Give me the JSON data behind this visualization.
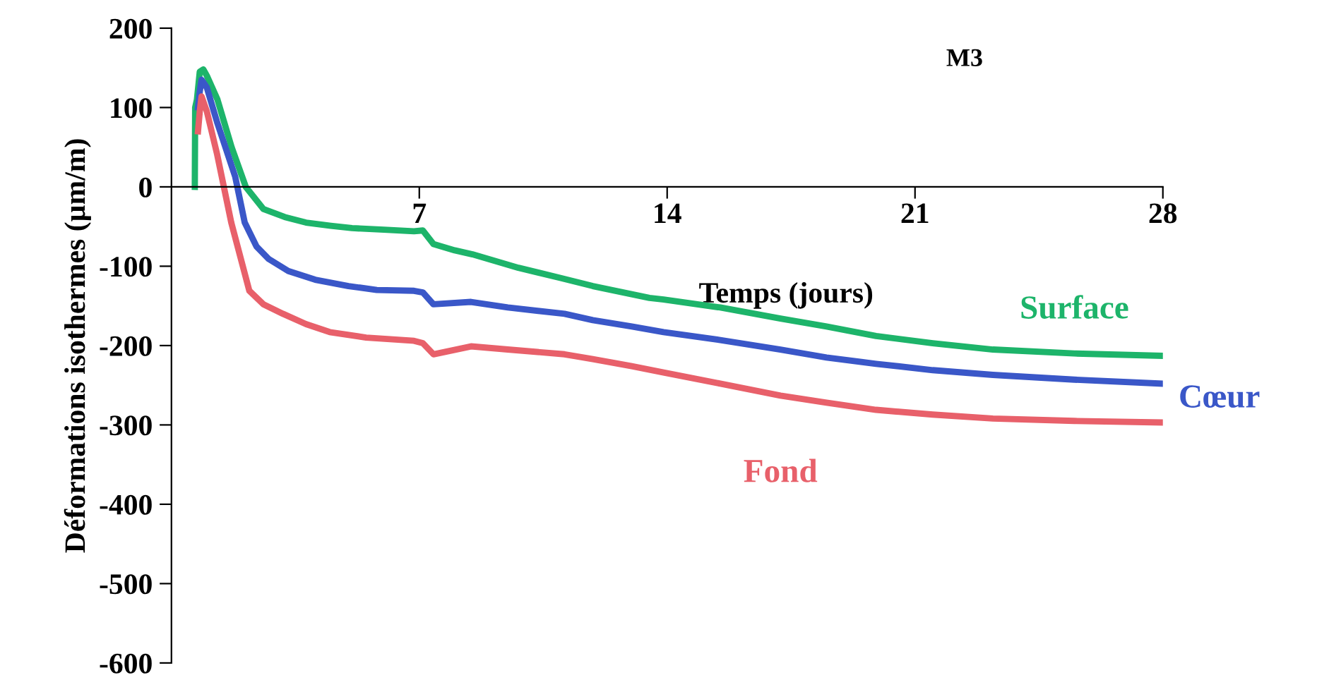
{
  "chart_data": {
    "type": "line",
    "title": "M3",
    "xlabel": "Temps (jours)",
    "ylabel": "Déformations isothermes (µm/m)",
    "xlim": [
      0,
      28
    ],
    "ylim": [
      -600,
      200
    ],
    "xticks": [
      7,
      14,
      21,
      28
    ],
    "yticks": [
      -600,
      -500,
      -400,
      -300,
      -200,
      -100,
      0,
      100,
      200
    ],
    "grid": false,
    "legend": false,
    "marker": "none",
    "line_style": "solid",
    "series": [
      {
        "name": "Surface",
        "color": "#1db46a",
        "x": [
          0.66,
          0.67,
          0.72,
          0.8,
          0.9,
          1.0,
          1.3,
          1.7,
          2.1,
          2.6,
          3.2,
          3.8,
          4.5,
          5.1,
          6.0,
          6.85,
          7.1,
          7.4,
          8.0,
          8.5,
          9.8,
          11.0,
          11.9,
          13.5,
          13.9,
          15.5,
          17.2,
          18.5,
          19.9,
          21.5,
          23.2,
          25.5,
          28.0
        ],
        "values": [
          0,
          100,
          110,
          145,
          148,
          140,
          110,
          50,
          0,
          -28,
          -38,
          -45,
          -49,
          -52,
          -54,
          -56,
          -55,
          -72,
          -80,
          -85,
          -102,
          -115,
          -125,
          -140,
          -142,
          -152,
          -166,
          -176,
          -188,
          -197,
          -205,
          -210,
          -213
        ]
      },
      {
        "name": "Cœur",
        "color": "#3a57c8",
        "x": [
          0.75,
          0.8,
          0.85,
          1.0,
          1.3,
          1.8,
          2.07,
          2.4,
          2.75,
          3.3,
          4.06,
          5.0,
          5.8,
          6.85,
          7.1,
          7.4,
          8.46,
          9.5,
          11.1,
          11.9,
          13.0,
          13.9,
          15.5,
          17.2,
          18.5,
          19.9,
          21.5,
          23.2,
          25.5,
          28.0
        ],
        "values": [
          100,
          120,
          135,
          125,
          80,
          13,
          -45,
          -75,
          -91,
          -106,
          -117,
          -125,
          -130,
          -131,
          -133,
          -148,
          -145,
          -152,
          -160,
          -168,
          -176,
          -183,
          -193,
          -205,
          -215,
          -223,
          -231,
          -237,
          -243,
          -248
        ]
      },
      {
        "name": "Fond",
        "color": "#e8606a",
        "x": [
          0.75,
          0.8,
          0.85,
          1.0,
          1.29,
          1.69,
          2.2,
          2.6,
          3.15,
          3.8,
          4.47,
          5.5,
          6.85,
          7.1,
          7.4,
          8.46,
          9.5,
          11.1,
          11.9,
          13.0,
          13.9,
          15.5,
          17.2,
          18.5,
          19.9,
          21.5,
          23.2,
          25.5,
          28.0
        ],
        "values": [
          70,
          95,
          114,
          95,
          41,
          -45,
          -131,
          -148,
          -160,
          -173,
          -183,
          -190,
          -194,
          -197,
          -211,
          -201,
          -205,
          -211,
          -217,
          -226,
          -234,
          -248,
          -263,
          -272,
          -281,
          -287,
          -292,
          -295,
          -297
        ]
      }
    ]
  }
}
